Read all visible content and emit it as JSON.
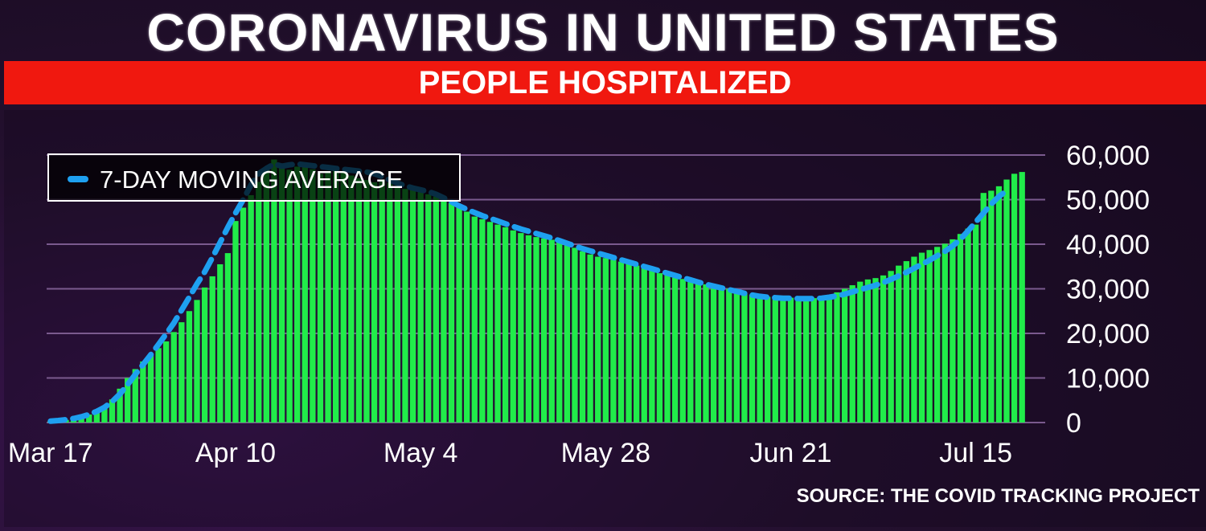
{
  "header": {
    "title": "CORONAVIRUS IN UNITED STATES",
    "subtitle": "PEOPLE HOSPITALIZED"
  },
  "source": "SOURCE: THE COVID TRACKING PROJECT",
  "colors": {
    "bars": "#21ec4a",
    "average_line": "#1ea0f0",
    "banner": "#f0180f",
    "gridline": "#7a5a8e"
  },
  "chart_data": {
    "type": "bar",
    "title": "PEOPLE HOSPITALIZED",
    "legend": {
      "position": "top-left",
      "entries": [
        "7-DAY MOVING AVERAGE"
      ]
    },
    "x_tick_labels": [
      "Mar 17",
      "Apr 10",
      "May 4",
      "May 28",
      "Jun 21",
      "Jul 15"
    ],
    "x_tick_indices": [
      0,
      24,
      48,
      72,
      96,
      120
    ],
    "ylim": [
      0,
      60000
    ],
    "y_ticks": [
      0,
      10000,
      20000,
      30000,
      40000,
      50000,
      60000
    ],
    "y_tick_labels": [
      "0",
      "10,000",
      "20,000",
      "30,000",
      "40,000",
      "50,000",
      "60,000"
    ],
    "grid": true,
    "series": [
      {
        "kind": "bar",
        "values": [
          300,
          400,
          600,
          800,
          1200,
          1800,
          2500,
          3500,
          5200,
          7600,
          10000,
          12000,
          13700,
          15200,
          16700,
          18200,
          20300,
          22500,
          25000,
          27500,
          30300,
          32800,
          35500,
          38000,
          45200,
          48200,
          51000,
          54000,
          57000,
          59000,
          58000,
          56700,
          57400,
          58000,
          56800,
          55800,
          56400,
          57000,
          56200,
          55400,
          54800,
          54400,
          53900,
          54500,
          53800,
          52900,
          52400,
          52600,
          52000,
          51200,
          50700,
          49900,
          49300,
          48700,
          47300,
          46200,
          45600,
          45000,
          44400,
          43800,
          43100,
          42500,
          42000,
          41600,
          41300,
          41000,
          40400,
          39800,
          39200,
          38400,
          37700,
          37200,
          36900,
          36500,
          36100,
          35600,
          35200,
          34700,
          34100,
          33500,
          33000,
          32500,
          32200,
          31800,
          31400,
          31000,
          30700,
          30300,
          30000,
          29600,
          29100,
          28700,
          28300,
          28200,
          28100,
          27900,
          28000,
          28000,
          27800,
          27900,
          28100,
          28500,
          29200,
          30000,
          30800,
          31600,
          32100,
          32400,
          33000,
          34000,
          35200,
          36200,
          37200,
          38100,
          38700,
          39400,
          40100,
          41100,
          42300,
          43500,
          44400,
          51500,
          52000,
          53000,
          54500,
          55800,
          56200
        ]
      },
      {
        "kind": "line",
        "name": "7-DAY MOVING AVERAGE",
        "values": [
          300,
          450,
          650,
          900,
          1300,
          1800,
          2500,
          3400,
          4700,
          6400,
          8500,
          10800,
          13000,
          15200,
          17500,
          19900,
          22300,
          25200,
          28100,
          31100,
          33800,
          37000,
          40400,
          43800,
          47000,
          50000,
          53300,
          55800,
          57000,
          58000,
          57500,
          57800,
          58000,
          57800,
          57600,
          57400,
          57200,
          57000,
          56800,
          56600,
          56400,
          56200,
          55800,
          55200,
          54400,
          53700,
          53100,
          52600,
          52200,
          51800,
          51200,
          50400,
          49500,
          48600,
          47800,
          47100,
          46400,
          45800,
          45200,
          44600,
          44000,
          43400,
          42900,
          42400,
          41900,
          41400,
          40800,
          40200,
          39600,
          39000,
          38500,
          38000,
          37500,
          37000,
          36500,
          36000,
          35500,
          35000,
          34500,
          34000,
          33500,
          33000,
          32500,
          32000,
          31500,
          31000,
          30600,
          30200,
          29800,
          29400,
          29000,
          28600,
          28300,
          28100,
          28000,
          27900,
          27900,
          27800,
          27800,
          27800,
          27900,
          28100,
          28400,
          28800,
          29300,
          29800,
          30300,
          30800,
          31400,
          32100,
          32900,
          33700,
          34600,
          35500,
          36400,
          37400,
          38400,
          39600,
          41100,
          43000,
          45000,
          47000,
          49000,
          50700,
          52000
        ]
      }
    ]
  }
}
